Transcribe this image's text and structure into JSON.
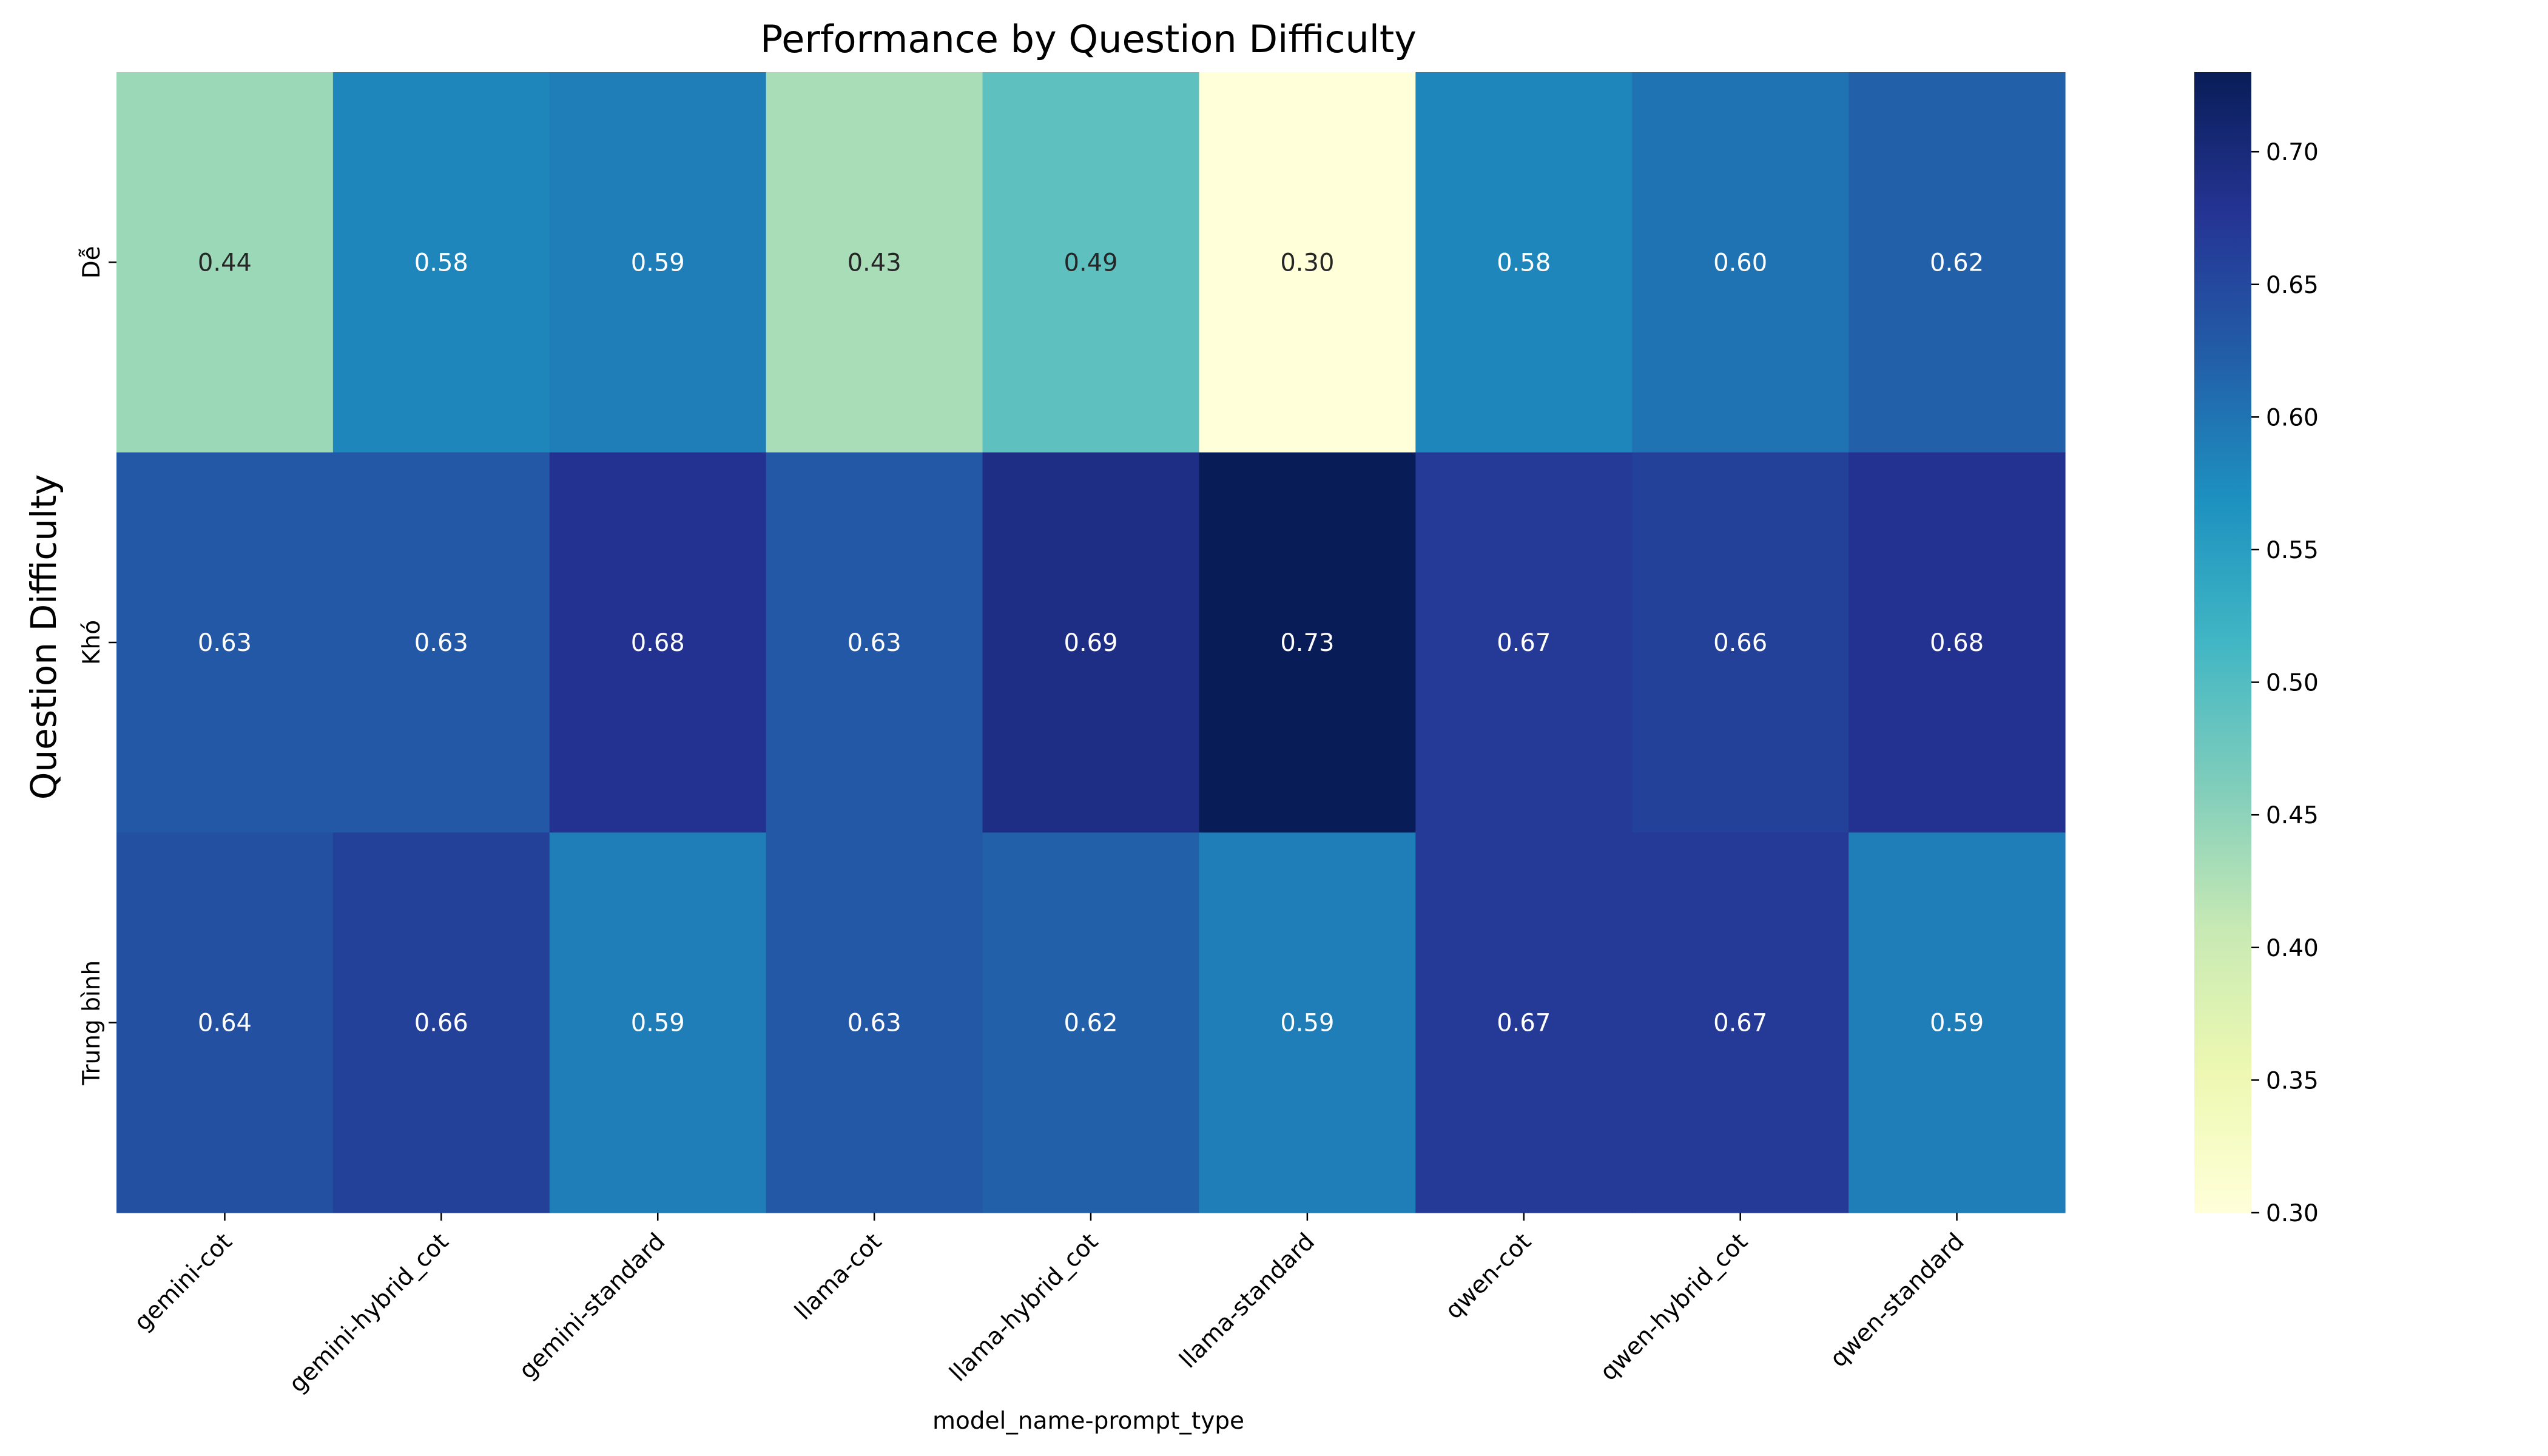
{
  "chart_data": {
    "type": "heatmap",
    "title": "Performance by Question Difficulty",
    "xlabel": "model_name-prompt_type",
    "ylabel": "Question Difficulty",
    "x_categories": [
      "gemini-cot",
      "gemini-hybrid_cot",
      "gemini-standard",
      "llama-cot",
      "llama-hybrid_cot",
      "llama-standard",
      "qwen-cot",
      "qwen-hybrid_cot",
      "qwen-standard"
    ],
    "y_categories": [
      "Dễ",
      "Khó",
      "Trung bình"
    ],
    "values": [
      [
        0.44,
        0.58,
        0.59,
        0.43,
        0.49,
        0.3,
        0.58,
        0.6,
        0.62
      ],
      [
        0.63,
        0.63,
        0.68,
        0.63,
        0.69,
        0.73,
        0.67,
        0.66,
        0.68
      ],
      [
        0.64,
        0.66,
        0.59,
        0.63,
        0.62,
        0.59,
        0.67,
        0.67,
        0.59
      ]
    ],
    "value_labels": [
      [
        "0.44",
        "0.58",
        "0.59",
        "0.43",
        "0.49",
        "0.30",
        "0.58",
        "0.60",
        "0.62"
      ],
      [
        "0.63",
        "0.63",
        "0.68",
        "0.63",
        "0.69",
        "0.73",
        "0.67",
        "0.66",
        "0.68"
      ],
      [
        "0.64",
        "0.66",
        "0.59",
        "0.63",
        "0.62",
        "0.59",
        "0.67",
        "0.67",
        "0.59"
      ]
    ],
    "colorbar": {
      "colormap": "YlGnBu",
      "min": 0.3,
      "max": 0.73,
      "ticks": [
        0.3,
        0.35,
        0.4,
        0.45,
        0.5,
        0.55,
        0.6,
        0.65,
        0.7
      ],
      "tick_labels": [
        "0.30",
        "0.35",
        "0.40",
        "0.45",
        "0.50",
        "0.55",
        "0.60",
        "0.65",
        "0.70"
      ]
    },
    "grid": false,
    "legend": "colorbar-right"
  }
}
